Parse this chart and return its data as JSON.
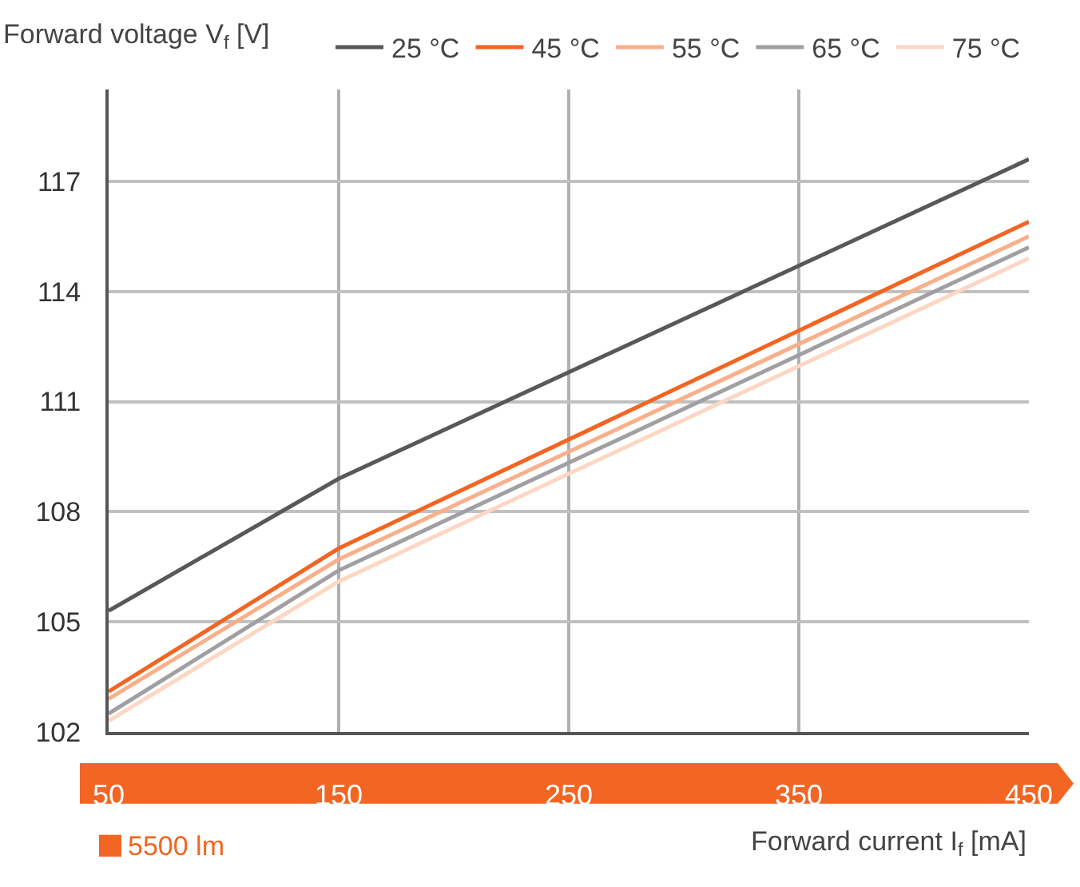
{
  "chart_data": {
    "type": "line",
    "ylabel": "Forward voltage V$_{f}$ [V]",
    "xlabel": "Forward current I$_{f}$ [mA]",
    "annotations": [
      "5500 lm"
    ],
    "x": [
      50,
      150,
      450
    ],
    "series": [
      {
        "name": "25 °C",
        "color": "#58585a",
        "values": [
          105.3,
          108.9,
          117.6
        ]
      },
      {
        "name": "45 °C",
        "color": "#f26522",
        "values": [
          103.1,
          107.0,
          115.9
        ]
      },
      {
        "name": "55 °C",
        "color": "#f9b08a",
        "values": [
          102.9,
          106.7,
          115.5
        ]
      },
      {
        "name": "65 °C",
        "color": "#a0a0a4",
        "values": [
          102.5,
          106.4,
          115.2
        ]
      },
      {
        "name": "75 °C",
        "color": "#fcd7c3",
        "values": [
          102.3,
          106.1,
          114.9
        ]
      }
    ],
    "xlim": [
      50,
      450
    ],
    "xticks": [
      50,
      150,
      250,
      350,
      450
    ],
    "ylim": [
      102,
      119.5
    ],
    "yticks": [
      102,
      105,
      108,
      111,
      114,
      117
    ],
    "grid": true,
    "legend": "top right",
    "marker": "none",
    "line_style": "solid"
  }
}
